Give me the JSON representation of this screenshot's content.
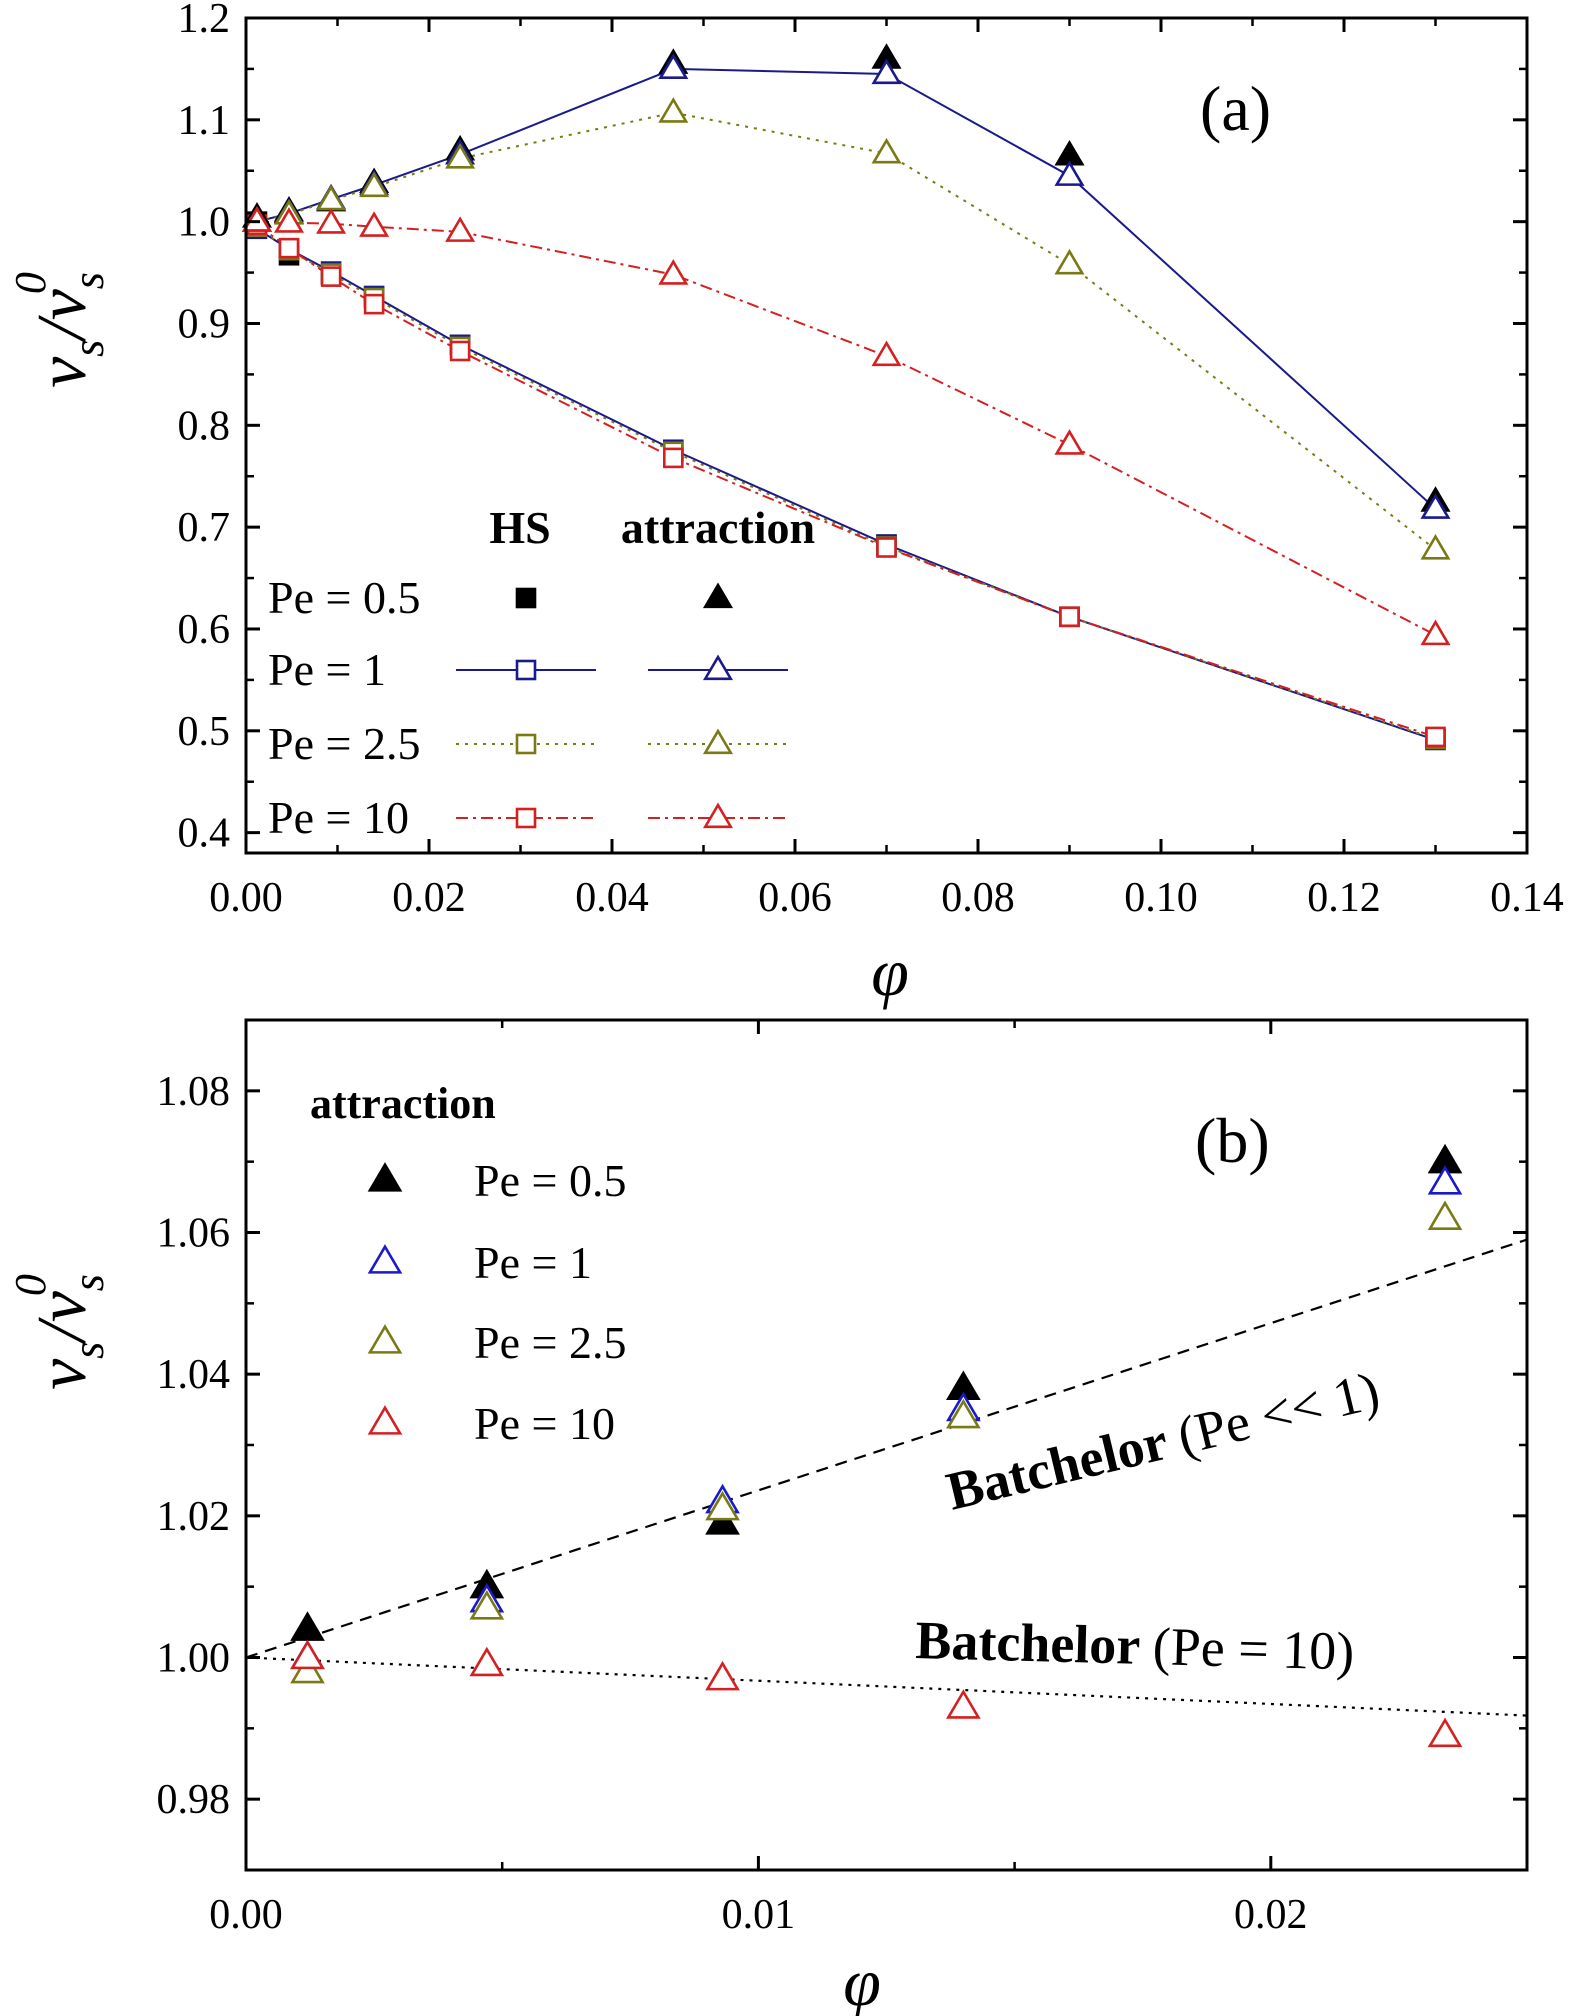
{
  "chart_data": [
    {
      "type": "line",
      "panel_label": "(a)",
      "xlabel": "φ",
      "ylabel": "v_s / v_s^0",
      "xlim": [
        0,
        0.14
      ],
      "ylim": [
        0.38,
        1.2
      ],
      "x_ticks": [
        0.0,
        0.02,
        0.04,
        0.06,
        0.08,
        0.1,
        0.12,
        0.14
      ],
      "x_tick_labels": [
        "0.00",
        "0.02",
        "0.04",
        "0.06",
        "0.08",
        "0.10",
        "0.12",
        "0.14"
      ],
      "y_ticks": [
        0.4,
        0.5,
        0.6,
        0.7,
        0.8,
        0.9,
        1.0,
        1.1,
        1.2
      ],
      "y_tick_labels": [
        "0.4",
        "0.5",
        "0.6",
        "0.7",
        "0.8",
        "0.9",
        "1.0",
        "1.1",
        "1.2"
      ],
      "x": [
        0.0012,
        0.0047,
        0.0093,
        0.014,
        0.0234,
        0.0467,
        0.07,
        0.09,
        0.13
      ],
      "legend": {
        "headers": [
          "HS",
          "attraction"
        ],
        "rows": [
          "Pe = 0.5",
          "Pe = 1",
          "Pe = 2.5",
          "Pe = 10"
        ],
        "placement": "lower-left"
      },
      "series": [
        {
          "model": "HS",
          "pe": "Pe = 0.5",
          "color": "#000000",
          "marker": "square",
          "filled": true,
          "line": "none",
          "values": [
            1.0,
            0.967,
            0.948,
            0.926,
            0.879,
            0.775,
            0.682,
            0.612,
            0.492
          ]
        },
        {
          "model": "HS",
          "pe": "Pe = 1",
          "color": "#1a1a8c",
          "marker": "square",
          "filled": false,
          "line": "solid",
          "values": [
            0.993,
            0.973,
            0.951,
            0.927,
            0.879,
            0.776,
            0.683,
            0.612,
            0.491
          ]
        },
        {
          "model": "HS",
          "pe": "Pe = 2.5",
          "color": "#7a7a14",
          "marker": "square",
          "filled": false,
          "line": "dotted",
          "values": [
            0.995,
            0.972,
            0.949,
            0.925,
            0.877,
            0.774,
            0.681,
            0.612,
            0.492
          ]
        },
        {
          "model": "HS",
          "pe": "Pe = 10",
          "color": "#d42020",
          "marker": "square",
          "filled": false,
          "line": "dashdot",
          "values": [
            0.997,
            0.974,
            0.946,
            0.919,
            0.873,
            0.768,
            0.68,
            0.612,
            0.494
          ]
        },
        {
          "model": "attraction",
          "pe": "Pe = 0.5",
          "color": "#000000",
          "marker": "triangle",
          "filled": true,
          "line": "none",
          "values": [
            1.004,
            1.01,
            1.02,
            1.038,
            1.07,
            1.155,
            1.16,
            1.065,
            0.725
          ]
        },
        {
          "model": "attraction",
          "pe": "Pe = 1",
          "color": "#1a1a8c",
          "marker": "triangle",
          "filled": false,
          "line": "solid",
          "values": [
            1.0,
            1.008,
            1.022,
            1.036,
            1.066,
            1.15,
            1.145,
            1.045,
            0.718
          ]
        },
        {
          "model": "attraction",
          "pe": "Pe = 2.5",
          "color": "#7a7a14",
          "marker": "triangle",
          "filled": false,
          "line": "dotted",
          "values": [
            1.0,
            1.007,
            1.021,
            1.034,
            1.062,
            1.107,
            1.067,
            0.958,
            0.678
          ]
        },
        {
          "model": "attraction",
          "pe": "Pe = 10",
          "color": "#d42020",
          "marker": "triangle",
          "filled": false,
          "line": "dashdot",
          "values": [
            1.0,
            0.999,
            0.998,
            0.995,
            0.99,
            0.948,
            0.868,
            0.781,
            0.594
          ]
        }
      ]
    },
    {
      "type": "scatter",
      "panel_label": "(b)",
      "xlabel": "φ",
      "ylabel": "v_s / v_s^0",
      "xlim": [
        0,
        0.025
      ],
      "ylim": [
        0.97,
        1.09
      ],
      "x_ticks": [
        0.0,
        0.01,
        0.02
      ],
      "x_tick_labels": [
        "0.00",
        "0.01",
        "0.02"
      ],
      "y_ticks": [
        0.98,
        1.0,
        1.02,
        1.04,
        1.06,
        1.08
      ],
      "y_tick_labels": [
        "0.98",
        "1.00",
        "1.02",
        "1.04",
        "1.06",
        "1.08"
      ],
      "x": [
        0.0012,
        0.0047,
        0.0093,
        0.014,
        0.0234
      ],
      "legend": {
        "title": "attraction",
        "rows": [
          "Pe = 0.5",
          "Pe = 1",
          "Pe = 2.5",
          "Pe = 10"
        ],
        "placement": "top-left"
      },
      "series": [
        {
          "pe": "Pe = 0.5",
          "color": "#000000",
          "filled": true,
          "values": [
            1.004,
            1.01,
            1.019,
            1.038,
            1.07
          ]
        },
        {
          "pe": "Pe = 1",
          "color": "#1a1acc",
          "filled": false,
          "values": [
            1.0,
            1.008,
            1.022,
            1.035,
            1.067
          ]
        },
        {
          "pe": "Pe = 2.5",
          "color": "#7a7a14",
          "filled": false,
          "values": [
            0.998,
            1.007,
            1.021,
            1.034,
            1.062
          ]
        },
        {
          "pe": "Pe = 10",
          "color": "#d42020",
          "filled": false,
          "values": [
            1.0,
            0.999,
            0.997,
            0.993,
            0.989
          ]
        }
      ],
      "reference_lines": [
        {
          "label_bold": "Batchelor",
          "label_rest": "(Pe << 1)",
          "style": "dashed",
          "x": [
            0,
            0.025
          ],
          "y": [
            1.0,
            1.059
          ]
        },
        {
          "label_bold": "Batchelor",
          "label_rest": "(Pe = 10)",
          "style": "dotted",
          "x": [
            0,
            0.025
          ],
          "y": [
            1.0,
            0.9918
          ]
        }
      ]
    }
  ]
}
